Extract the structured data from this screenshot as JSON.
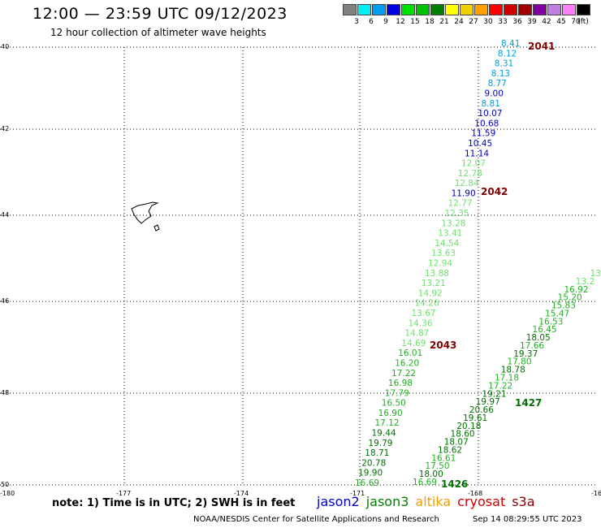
{
  "header": {
    "title": "12:00 — 23:59 UTC 09/12/2023",
    "subtitle": "12 hour collection of altimeter wave heights"
  },
  "legend": {
    "colors": [
      "#808080",
      "#00f0f0",
      "#00a0f0",
      "#0000e0",
      "#00e000",
      "#00c000",
      "#008000",
      "#ffff00",
      "#f0d000",
      "#ffa000",
      "#ff0000",
      "#d00000",
      "#a00000",
      "#8000a0",
      "#c080e0",
      "#ff80ff",
      "#000000"
    ],
    "labels": [
      "3",
      "6",
      "9",
      "12",
      "15",
      "18",
      "21",
      "24",
      "27",
      "30",
      "33",
      "36",
      "39",
      "42",
      "45",
      "70",
      "(ft)"
    ]
  },
  "axes": {
    "lat_labels": [
      "40",
      "42",
      "44",
      "46",
      "48",
      "50"
    ],
    "lon_labels": [
      "-180",
      "-177",
      "-174",
      "-171",
      "-168",
      "-16"
    ]
  },
  "tracks": [
    {
      "name": "track-a",
      "values": [
        "8.41",
        "8.12",
        "8.31",
        "8.13",
        "8.77",
        "9.00",
        "8.81",
        "10.07",
        "10.68",
        "11.59",
        "10.45",
        "11.14",
        "12.07",
        "12.78",
        "12.84",
        "11.90",
        "12.77",
        "12.35",
        "13.28",
        "13.41",
        "14.54",
        "13.63",
        "12.94",
        "13.88",
        "13.21",
        "14.92",
        "14.26",
        "13.67",
        "14.36",
        "14.87",
        "14.69",
        "16.01",
        "16.20",
        "17.22",
        "16.98",
        "17.79",
        "16.50",
        "16.90",
        "17.12",
        "19.44",
        "19.79",
        "18.71",
        "20.78",
        "19.90",
        "16.69"
      ]
    },
    {
      "name": "track-b",
      "values": [
        "13",
        "13.2",
        "16.92",
        "15.20",
        "15.83",
        "15.47",
        "16.53",
        "16.45",
        "18.05",
        "17.66",
        "19.37",
        "17.80",
        "18.78",
        "17.18",
        "17.22",
        "19.21",
        "19.97",
        "20.66",
        "19.61",
        "20.18",
        "18.60",
        "18.07",
        "18.62",
        "16.61",
        "17.50",
        "18.00",
        "16.69"
      ]
    }
  ],
  "orbits": [
    "2041",
    "2042",
    "2043",
    "1427",
    "1426"
  ],
  "footer": {
    "note": "note:  1) Time is in UTC;  2) SWH is in feet",
    "satellites": [
      {
        "name": "jason2",
        "color": "#0000d0"
      },
      {
        "name": "jason3",
        "color": "#008000"
      },
      {
        "name": "altika",
        "color": "#f0a000"
      },
      {
        "name": "cryosat",
        "color": "#d00000"
      },
      {
        "name": "s3a",
        "color": "#800000"
      }
    ],
    "credit": "NOAA/NESDIS Center for Satellite Applications and Research",
    "timestamp": "Sep 14 08:29:55 UTC 2023"
  }
}
